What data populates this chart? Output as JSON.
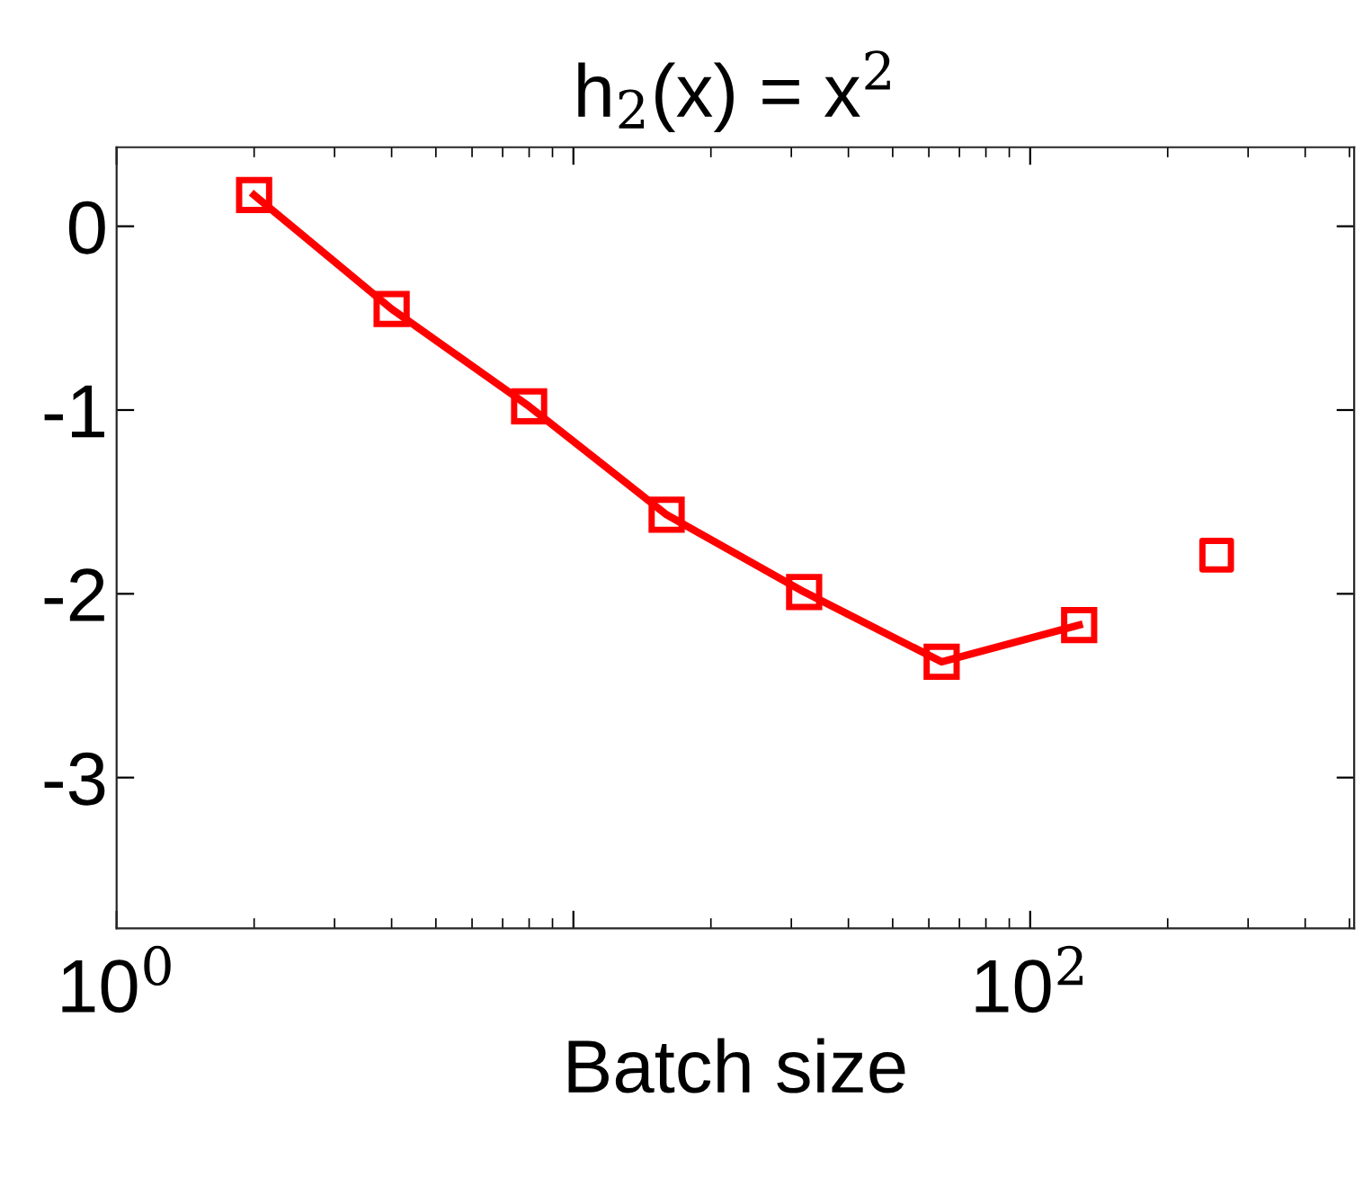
{
  "chart_data": {
    "type": "line",
    "title": "h$_{2}$(x) = x$^{2}$",
    "xlabel": "Batch size",
    "log": "x",
    "xlim": [
      1,
      512
    ],
    "xticks": [
      {
        "value": 1,
        "label": "10$^{0}$"
      },
      {
        "value": 10,
        "label": null
      },
      {
        "value": 100,
        "label": "10$^{2}$"
      }
    ],
    "ylim": [
      -3.82,
      0.43
    ],
    "yticks": [
      {
        "value": 0,
        "label": "0"
      },
      {
        "value": -1,
        "label": "-1"
      },
      {
        "value": -2,
        "label": "-2"
      },
      {
        "value": -3,
        "label": "-3"
      }
    ],
    "grid": false,
    "legend": false,
    "marker": "square",
    "line_style": "solid",
    "series": [
      {
        "color": "#ff0000",
        "x": [
          2,
          4,
          8,
          16,
          32,
          64,
          128
        ],
        "values": [
          0.17,
          -0.45,
          -0.98,
          -1.57,
          -1.99,
          -2.37,
          -2.17
        ]
      },
      {
        "type": "scatter",
        "color": "#ff0000",
        "x": [
          256
        ],
        "values": [
          -1.79
        ]
      }
    ]
  }
}
